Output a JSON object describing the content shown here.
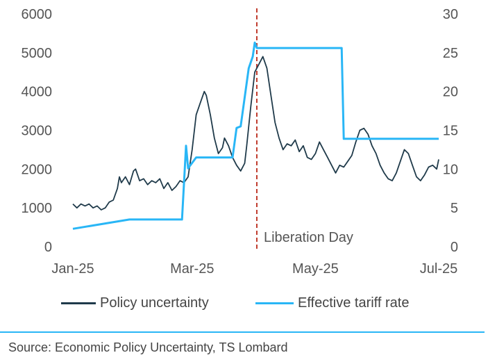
{
  "chart_data": {
    "type": "line",
    "title": "",
    "x_axis": {
      "min": "2025-01-01",
      "max": "2025-07-01",
      "tick_labels": [
        {
          "date": "2025-01-01",
          "label": "Jan-25"
        },
        {
          "date": "2025-03-01",
          "label": "Mar-25"
        },
        {
          "date": "2025-05-01",
          "label": "May-25"
        },
        {
          "date": "2025-07-01",
          "label": "Jul-25"
        }
      ]
    },
    "y_left": {
      "min": 0,
      "max": 6000,
      "ticks": [
        "0",
        "1000",
        "2000",
        "3000",
        "4000",
        "5000",
        "6000"
      ]
    },
    "y_right": {
      "min": 0,
      "max": 30,
      "ticks": [
        "0",
        "5",
        "10",
        "15",
        "20",
        "25",
        "30"
      ]
    },
    "grid": false,
    "legend_position": "bottom",
    "annotation": {
      "date": "2025-04-02",
      "label": "Liberation Day",
      "color": "#c0392b",
      "style": "dashed"
    },
    "series": [
      {
        "name": "Policy uncertainty",
        "axis": "left",
        "color": "#1f3a4a",
        "points": [
          [
            "2025-01-01",
            1100
          ],
          [
            "2025-01-03",
            1000
          ],
          [
            "2025-01-05",
            1100
          ],
          [
            "2025-01-07",
            1050
          ],
          [
            "2025-01-09",
            1100
          ],
          [
            "2025-01-11",
            1000
          ],
          [
            "2025-01-13",
            1050
          ],
          [
            "2025-01-15",
            950
          ],
          [
            "2025-01-17",
            1000
          ],
          [
            "2025-01-19",
            1150
          ],
          [
            "2025-01-21",
            1200
          ],
          [
            "2025-01-23",
            1500
          ],
          [
            "2025-01-24",
            1800
          ],
          [
            "2025-01-25",
            1650
          ],
          [
            "2025-01-27",
            1800
          ],
          [
            "2025-01-29",
            1600
          ],
          [
            "2025-01-31",
            1950
          ],
          [
            "2025-02-01",
            2000
          ],
          [
            "2025-02-03",
            1700
          ],
          [
            "2025-02-05",
            1750
          ],
          [
            "2025-02-07",
            1600
          ],
          [
            "2025-02-09",
            1700
          ],
          [
            "2025-02-11",
            1650
          ],
          [
            "2025-02-13",
            1750
          ],
          [
            "2025-02-15",
            1500
          ],
          [
            "2025-02-17",
            1650
          ],
          [
            "2025-02-19",
            1450
          ],
          [
            "2025-02-21",
            1550
          ],
          [
            "2025-02-23",
            1700
          ],
          [
            "2025-02-25",
            1650
          ],
          [
            "2025-02-27",
            1800
          ],
          [
            "2025-03-01",
            2500
          ],
          [
            "2025-03-03",
            3400
          ],
          [
            "2025-03-05",
            3700
          ],
          [
            "2025-03-07",
            4000
          ],
          [
            "2025-03-08",
            3900
          ],
          [
            "2025-03-10",
            3400
          ],
          [
            "2025-03-12",
            2800
          ],
          [
            "2025-03-14",
            2400
          ],
          [
            "2025-03-16",
            2550
          ],
          [
            "2025-03-17",
            2800
          ],
          [
            "2025-03-19",
            2600
          ],
          [
            "2025-03-21",
            2300
          ],
          [
            "2025-03-23",
            2100
          ],
          [
            "2025-03-25",
            1950
          ],
          [
            "2025-03-27",
            2150
          ],
          [
            "2025-03-28",
            2600
          ],
          [
            "2025-03-30",
            3600
          ],
          [
            "2025-04-01",
            4500
          ],
          [
            "2025-04-03",
            4700
          ],
          [
            "2025-04-05",
            4900
          ],
          [
            "2025-04-07",
            4600
          ],
          [
            "2025-04-09",
            3900
          ],
          [
            "2025-04-11",
            3200
          ],
          [
            "2025-04-13",
            2800
          ],
          [
            "2025-04-15",
            2500
          ],
          [
            "2025-04-17",
            2650
          ],
          [
            "2025-04-19",
            2600
          ],
          [
            "2025-04-21",
            2750
          ],
          [
            "2025-04-23",
            2450
          ],
          [
            "2025-04-25",
            2600
          ],
          [
            "2025-04-27",
            2300
          ],
          [
            "2025-04-29",
            2250
          ],
          [
            "2025-05-01",
            2400
          ],
          [
            "2025-05-03",
            2700
          ],
          [
            "2025-05-05",
            2500
          ],
          [
            "2025-05-07",
            2300
          ],
          [
            "2025-05-09",
            2100
          ],
          [
            "2025-05-11",
            1900
          ],
          [
            "2025-05-13",
            2100
          ],
          [
            "2025-05-15",
            2050
          ],
          [
            "2025-05-17",
            2200
          ],
          [
            "2025-05-19",
            2350
          ],
          [
            "2025-05-21",
            2700
          ],
          [
            "2025-05-23",
            3000
          ],
          [
            "2025-05-25",
            3050
          ],
          [
            "2025-05-27",
            2900
          ],
          [
            "2025-05-29",
            2600
          ],
          [
            "2025-05-31",
            2400
          ],
          [
            "2025-06-02",
            2100
          ],
          [
            "2025-06-04",
            1900
          ],
          [
            "2025-06-06",
            1750
          ],
          [
            "2025-06-08",
            1700
          ],
          [
            "2025-06-10",
            1900
          ],
          [
            "2025-06-12",
            2200
          ],
          [
            "2025-06-14",
            2500
          ],
          [
            "2025-06-16",
            2400
          ],
          [
            "2025-06-18",
            2100
          ],
          [
            "2025-06-20",
            1800
          ],
          [
            "2025-06-22",
            1700
          ],
          [
            "2025-06-24",
            1850
          ],
          [
            "2025-06-26",
            2050
          ],
          [
            "2025-06-28",
            2100
          ],
          [
            "2025-06-30",
            2000
          ],
          [
            "2025-07-01",
            2250
          ]
        ]
      },
      {
        "name": "Effective tariff rate",
        "axis": "right",
        "color": "#29b6f6",
        "step": true,
        "points": [
          [
            "2025-01-01",
            2.3
          ],
          [
            "2025-01-29",
            3.5
          ],
          [
            "2025-02-24",
            3.5
          ],
          [
            "2025-02-26",
            13.0
          ],
          [
            "2025-02-27",
            10.1
          ],
          [
            "2025-03-03",
            11.5
          ],
          [
            "2025-03-21",
            11.5
          ],
          [
            "2025-03-23",
            15.3
          ],
          [
            "2025-03-25",
            15.5
          ],
          [
            "2025-03-29",
            23.0
          ],
          [
            "2025-03-31",
            24.5
          ],
          [
            "2025-04-01",
            26.3
          ],
          [
            "2025-04-02",
            25.6
          ],
          [
            "2025-05-14",
            25.6
          ],
          [
            "2025-05-15",
            13.9
          ],
          [
            "2025-07-01",
            13.9
          ]
        ]
      }
    ]
  },
  "source": "Source: Economic Policy Uncertainty, TS Lombard",
  "colors": {
    "rule": "#29b6f6",
    "text": "#555555"
  }
}
